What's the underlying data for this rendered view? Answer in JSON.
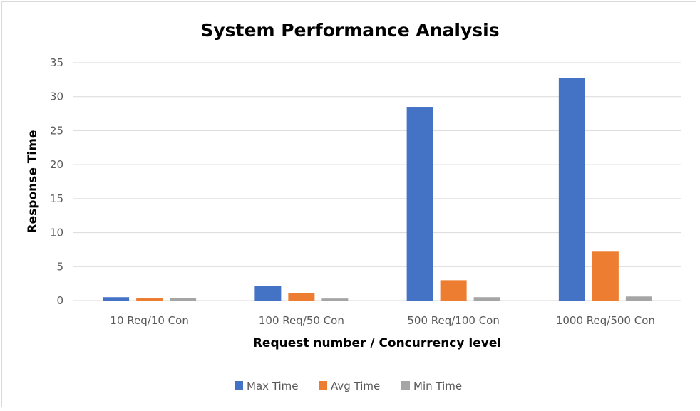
{
  "chart_data": {
    "type": "bar",
    "title": "System Performance Analysis",
    "xlabel": "Request number / Concurrency level",
    "ylabel": "Response Time",
    "categories": [
      "10 Req/10 Con",
      "100 Req/50 Con",
      "500 Req/100 Con",
      "1000 Req/500 Con"
    ],
    "series": [
      {
        "name": "Max Time",
        "color": "#4472c4",
        "values": [
          0.5,
          2.1,
          28.5,
          32.7
        ]
      },
      {
        "name": "Avg Time",
        "color": "#ed7d31",
        "values": [
          0.4,
          1.1,
          3.0,
          7.2
        ]
      },
      {
        "name": "Min Time",
        "color": "#a5a5a5",
        "values": [
          0.4,
          0.3,
          0.5,
          0.6
        ]
      }
    ],
    "ylim": [
      0,
      35
    ],
    "yticks": [
      0,
      5,
      10,
      15,
      20,
      25,
      30,
      35
    ],
    "grid": true,
    "legend_position": "bottom"
  }
}
